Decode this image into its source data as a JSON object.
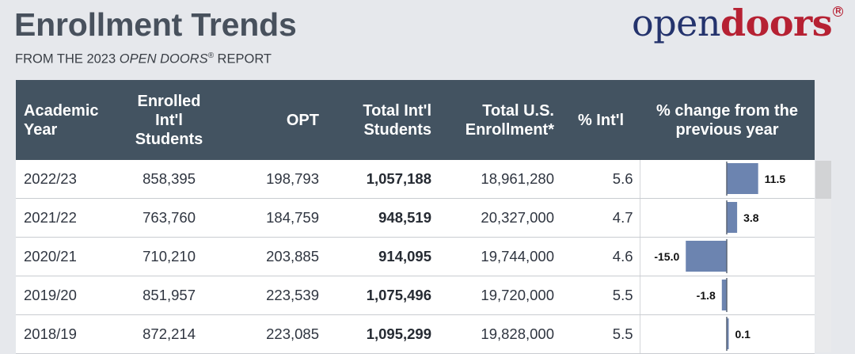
{
  "title": "Enrollment Trends",
  "subtitle": {
    "prefix": "FROM THE 2023 ",
    "italic": "OPEN DOORS",
    "reg": "®",
    "suffix": " REPORT"
  },
  "logo": {
    "open": "open",
    "doors": "doors",
    "reg": "R"
  },
  "table": {
    "headers": {
      "year": [
        "Academic",
        "Year"
      ],
      "enrolled": [
        "Enrolled",
        "Int'l",
        "Students"
      ],
      "opt": [
        "OPT"
      ],
      "total_intl": [
        "Total Int'l",
        "Students"
      ],
      "total_us": [
        "Total U.S.",
        "Enrollment*"
      ],
      "pct_intl": [
        "% Int'l"
      ],
      "pct_change": [
        "% change from the",
        "previous year"
      ]
    }
  },
  "chart_data": {
    "type": "table",
    "columns": [
      "Academic Year",
      "Enrolled Int'l Students",
      "OPT",
      "Total Int'l Students",
      "Total U.S. Enrollment*",
      "% Int'l",
      "% change from the previous year"
    ],
    "rows": [
      {
        "year": "2022/23",
        "enrolled": "858,395",
        "opt": "198,793",
        "total_intl": "1,057,188",
        "total_us": "18,961,280",
        "pct_intl": "5.6",
        "change": 11.5,
        "change_label": "11.5"
      },
      {
        "year": "2021/22",
        "enrolled": "763,760",
        "opt": "184,759",
        "total_intl": "948,519",
        "total_us": "20,327,000",
        "pct_intl": "4.7",
        "change": 3.8,
        "change_label": "3.8"
      },
      {
        "year": "2020/21",
        "enrolled": "710,210",
        "opt": "203,885",
        "total_intl": "914,095",
        "total_us": "19,744,000",
        "pct_intl": "4.6",
        "change": -15.0,
        "change_label": "-15.0"
      },
      {
        "year": "2019/20",
        "enrolled": "851,957",
        "opt": "223,539",
        "total_intl": "1,075,496",
        "total_us": "19,720,000",
        "pct_intl": "5.5",
        "change": -1.8,
        "change_label": "-1.8"
      },
      {
        "year": "2018/19",
        "enrolled": "872,214",
        "opt": "223,085",
        "total_intl": "1,095,299",
        "total_us": "19,828,000",
        "pct_intl": "5.5",
        "change": 0.1,
        "change_label": "0.1"
      }
    ],
    "bar_color": "#6c84b0",
    "axis_color": "#5a6576"
  }
}
